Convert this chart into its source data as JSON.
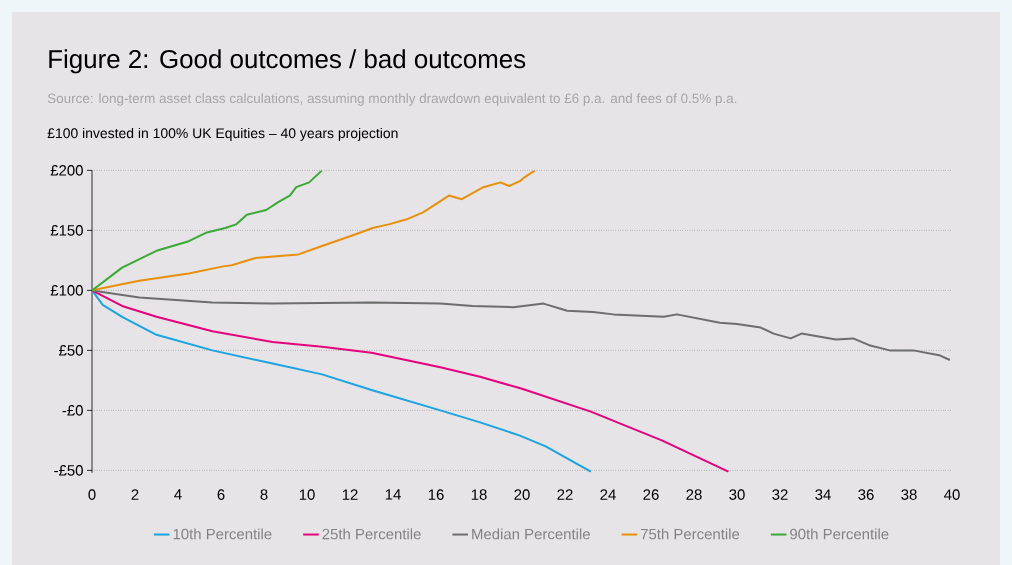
{
  "chart_data": {
    "type": "line",
    "title": "Figure 2: Good outcomes / bad outcomes",
    "subtitle": "Source: long-term asset class calculations, assuming monthly drawdown equivalent to £6 p.a. and fees of 0.5% p.a.",
    "ylabel": "£100 invested in 100% UK Equities – 40 years projection",
    "xlim": [
      0,
      40
    ],
    "ylim": [
      -52,
      200
    ],
    "xticks": [
      0,
      2,
      4,
      6,
      8,
      10,
      12,
      14,
      16,
      18,
      20,
      22,
      24,
      26,
      28,
      30,
      32,
      34,
      36,
      38,
      40
    ],
    "yticks": [
      {
        "value": -50,
        "label": "-£50"
      },
      {
        "value": 0,
        "label": "-£0"
      },
      {
        "value": 50,
        "label": "£50"
      },
      {
        "value": 100,
        "label": "£100"
      },
      {
        "value": 150,
        "label": "£150"
      },
      {
        "value": 200,
        "label": "£200"
      }
    ],
    "grid": "y",
    "legend": "bottom",
    "marker": "none",
    "line_style": "solid",
    "series": [
      {
        "name": "10th Percentile",
        "color": "#1ba3e2",
        "x": [
          0,
          0.5,
          1.4,
          3,
          5.6,
          8.4,
          10.7,
          13,
          16.2,
          18.05,
          19.9,
          21.1,
          23.2
        ],
        "values": [
          100,
          88,
          78,
          63,
          50,
          39,
          30,
          17,
          0,
          -10,
          -21,
          -30,
          -51
        ]
      },
      {
        "name": "25th Percentile",
        "color": "#e5007e",
        "x": [
          0,
          1.4,
          3,
          5.6,
          8.4,
          10.7,
          13,
          16.2,
          18.05,
          20,
          23.2,
          26.5,
          29.6
        ],
        "values": [
          100,
          87,
          78,
          66,
          57,
          53,
          48,
          36,
          28,
          18,
          -1,
          -25,
          -51
        ]
      },
      {
        "name": "Median Percentile",
        "color": "#6d6d6e",
        "x": [
          0,
          2.2,
          5.6,
          8.4,
          13,
          16.2,
          17.7,
          19.6,
          21,
          22.1,
          23.3,
          24.25,
          26.6,
          27.2,
          29.2,
          30,
          31.1,
          31.7,
          32.5,
          33,
          34.6,
          35.4,
          36.2,
          37.1,
          38.2,
          39.4,
          39.9
        ],
        "values": [
          100,
          94,
          90,
          89,
          90,
          89,
          87,
          86,
          89,
          83,
          82,
          80,
          78,
          80,
          73,
          72,
          69,
          64,
          60,
          64,
          59,
          60,
          54,
          50,
          50,
          46,
          42
        ]
      },
      {
        "name": "75th Percentile",
        "color": "#e8900b",
        "x": [
          0,
          2.2,
          4.5,
          6.1,
          6.5,
          7.6,
          9.6,
          10.7,
          12.3,
          13.05,
          13.8,
          14.6,
          15.4,
          16.6,
          17.2,
          18.2,
          19,
          19.4,
          19.9,
          20.1,
          20.6
        ],
        "values": [
          100,
          108,
          114,
          120,
          121,
          127,
          130,
          137,
          147,
          152,
          155,
          159,
          165,
          179,
          176,
          186,
          190,
          187,
          191,
          194,
          200
        ]
      },
      {
        "name": "90th Percentile",
        "color": "#3aa935",
        "x": [
          0,
          1.4,
          3,
          4.5,
          5.3,
          6.2,
          6.7,
          7.2,
          8.1,
          8.7,
          9.2,
          9.5,
          10.1,
          10.7
        ],
        "values": [
          100,
          119,
          133,
          141,
          148,
          152,
          155,
          163,
          167,
          174,
          179,
          186,
          190,
          200
        ]
      }
    ]
  }
}
